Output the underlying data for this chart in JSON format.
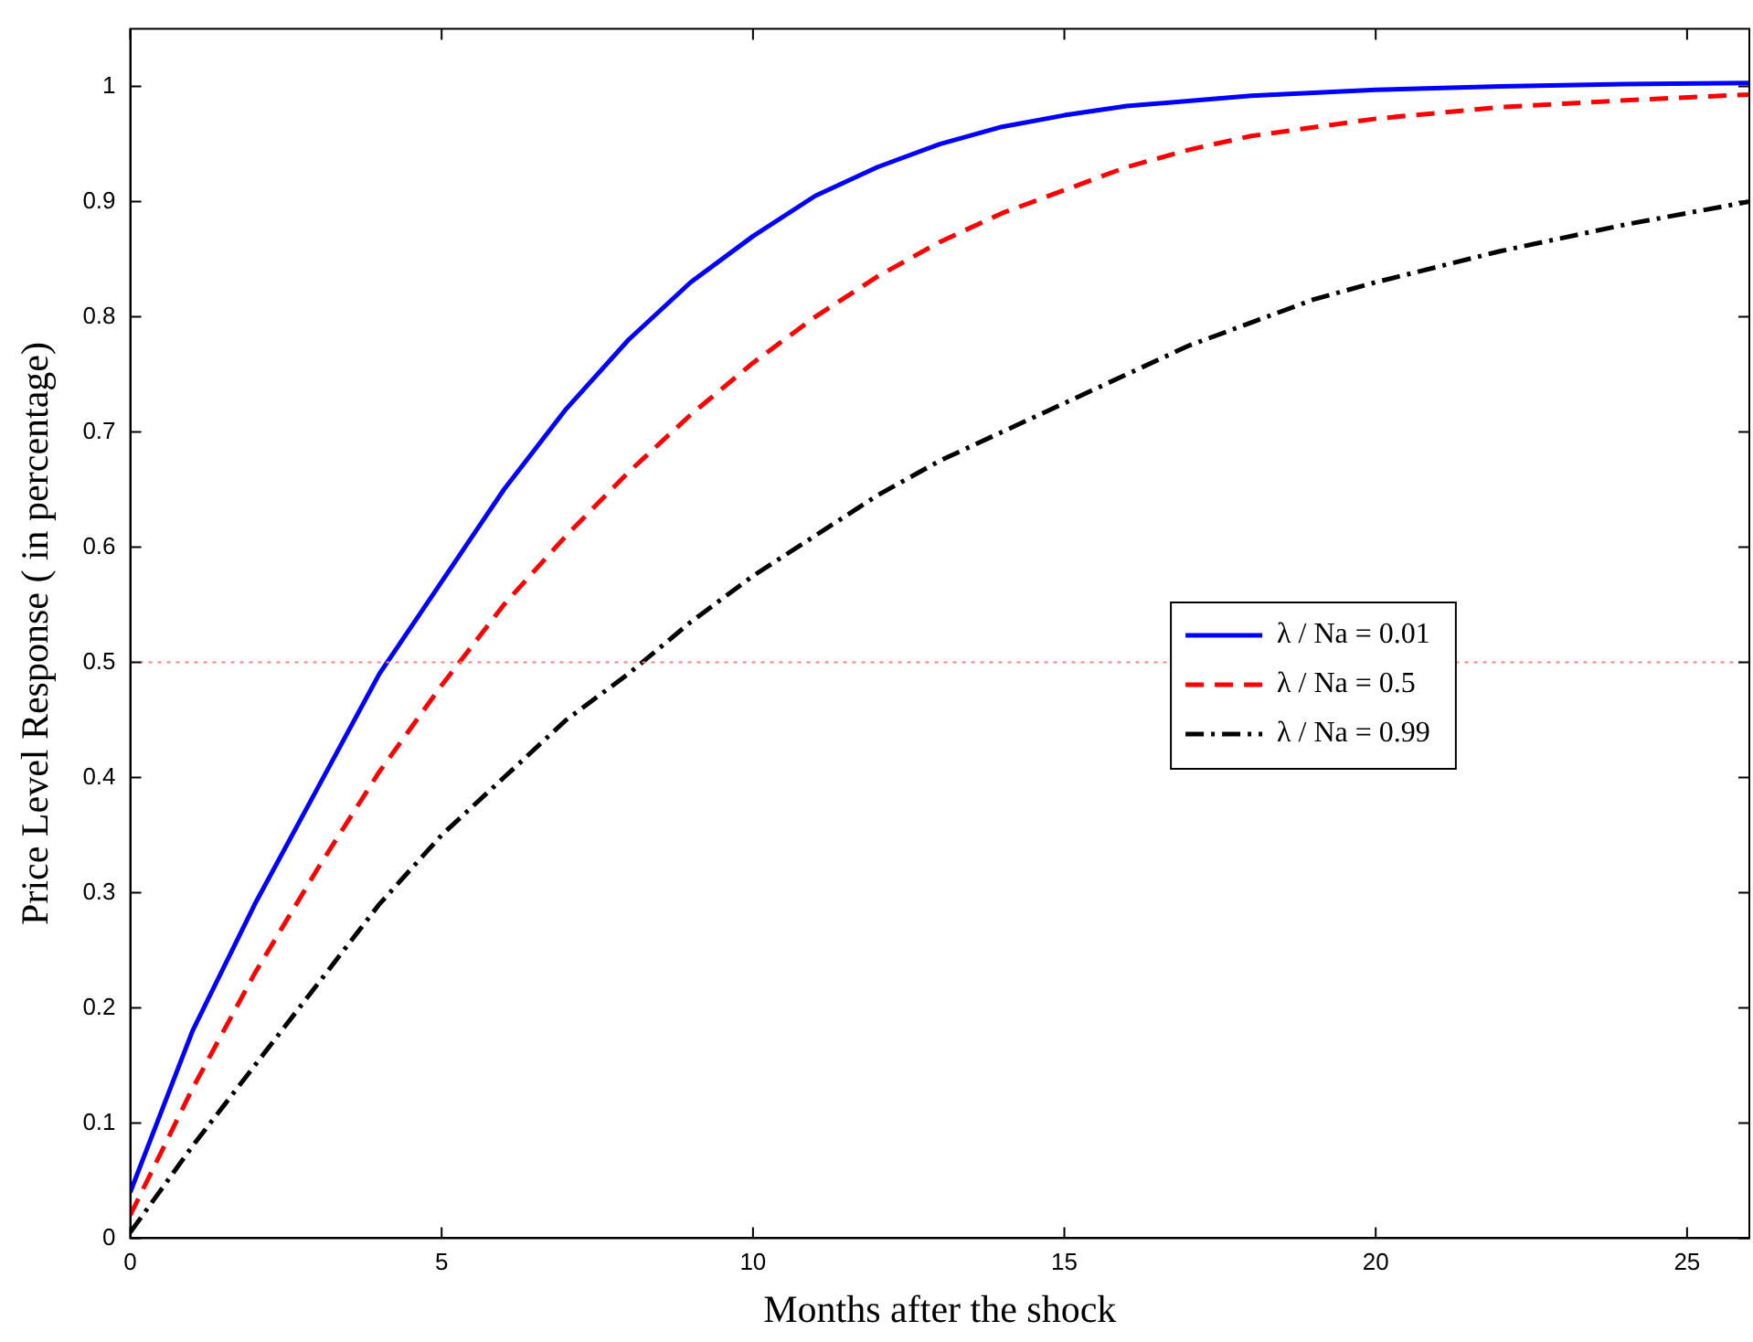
{
  "chart_data": {
    "type": "line",
    "xlabel": "Months after the shock",
    "ylabel": "Price Level Response ( in percentage)",
    "xlim": [
      0,
      26
    ],
    "ylim": [
      0,
      1.05
    ],
    "xticks": [
      0,
      5,
      10,
      15,
      20,
      25
    ],
    "yticks": [
      0,
      0.1,
      0.2,
      0.3,
      0.4,
      0.5,
      0.6,
      0.7,
      0.8,
      0.9,
      1
    ],
    "grid": false,
    "legend": "center right",
    "marker": "none",
    "ref_lines": [
      {
        "axis": "y",
        "value": 0.5,
        "color": "#ff8080",
        "line_style": "dotted"
      }
    ],
    "series": [
      {
        "name": "λ / Na = 0.01",
        "color": "#0000ff",
        "line_style": "solid",
        "x": [
          0,
          1,
          2,
          3,
          4,
          5,
          6,
          7,
          8,
          9,
          10,
          11,
          12,
          13,
          14,
          15,
          16,
          18,
          20,
          22,
          24,
          26
        ],
        "values": [
          0.04,
          0.18,
          0.29,
          0.39,
          0.49,
          0.57,
          0.65,
          0.72,
          0.78,
          0.83,
          0.87,
          0.905,
          0.93,
          0.95,
          0.965,
          0.975,
          0.983,
          0.992,
          0.997,
          1.0,
          1.002,
          1.003
        ]
      },
      {
        "name": "λ / Na = 0.5",
        "color": "#ff0000",
        "line_style": "dashed",
        "x": [
          0,
          1,
          2,
          3,
          4,
          5,
          6,
          7,
          8,
          9,
          10,
          11,
          12,
          13,
          14,
          15,
          16,
          17,
          18,
          20,
          22,
          24,
          26
        ],
        "values": [
          0.02,
          0.13,
          0.23,
          0.32,
          0.405,
          0.48,
          0.55,
          0.61,
          0.665,
          0.715,
          0.76,
          0.8,
          0.835,
          0.865,
          0.89,
          0.91,
          0.93,
          0.945,
          0.957,
          0.972,
          0.982,
          0.988,
          0.993
        ]
      },
      {
        "name": "λ / Na = 0.99",
        "color": "#000000",
        "line_style": "dashdot",
        "x": [
          0,
          1,
          2,
          3,
          4,
          5,
          6,
          7,
          8,
          9,
          10,
          11,
          12,
          13,
          14,
          15,
          16,
          17,
          18,
          19,
          20,
          22,
          24,
          26
        ],
        "values": [
          0.005,
          0.08,
          0.15,
          0.22,
          0.29,
          0.35,
          0.4,
          0.45,
          0.49,
          0.535,
          0.575,
          0.61,
          0.645,
          0.675,
          0.7,
          0.725,
          0.75,
          0.775,
          0.795,
          0.815,
          0.83,
          0.857,
          0.88,
          0.9
        ]
      }
    ]
  }
}
